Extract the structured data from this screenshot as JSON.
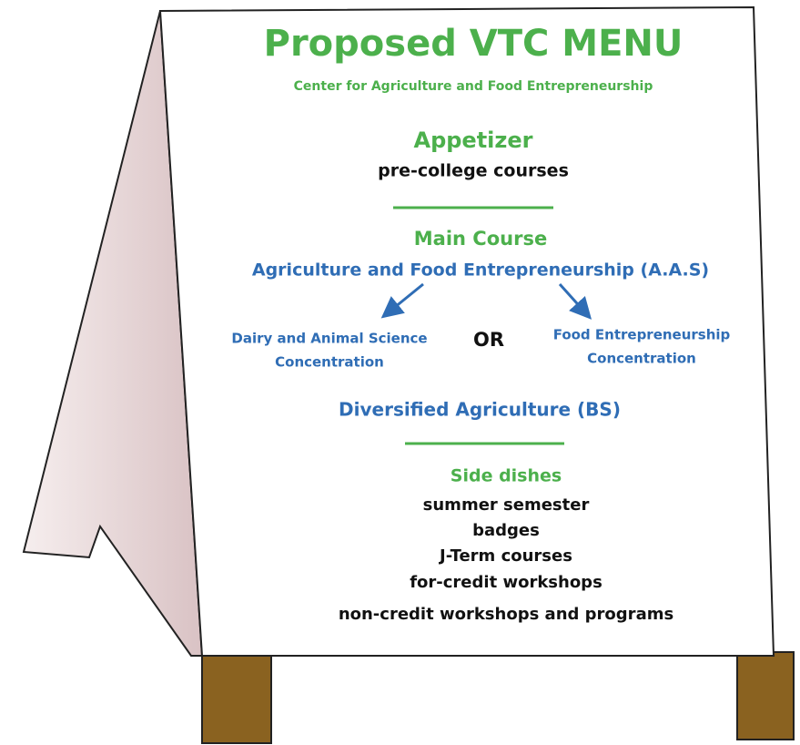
{
  "header": {
    "title": "Proposed VTC MENU",
    "subtitle": "Center for Agriculture and Food Entrepreneurship"
  },
  "appetizer": {
    "heading": "Appetizer",
    "items": [
      "pre-college courses"
    ]
  },
  "main_course": {
    "heading": "Main Course",
    "program": "Agriculture and Food Entrepreneurship (A.A.S)",
    "concentrations": [
      {
        "lines": [
          "Dairy and Animal Science",
          "Concentration"
        ]
      },
      {
        "lines": [
          "Food Entrepreneurship",
          "Concentration"
        ]
      }
    ],
    "connector": "OR",
    "alternative": "Diversified Agriculture (BS)"
  },
  "side_dishes": {
    "heading": "Side dishes",
    "items": [
      "summer semester",
      "badges",
      "J-Term courses",
      "for-credit workshops",
      "non-credit workshops and programs"
    ]
  }
}
